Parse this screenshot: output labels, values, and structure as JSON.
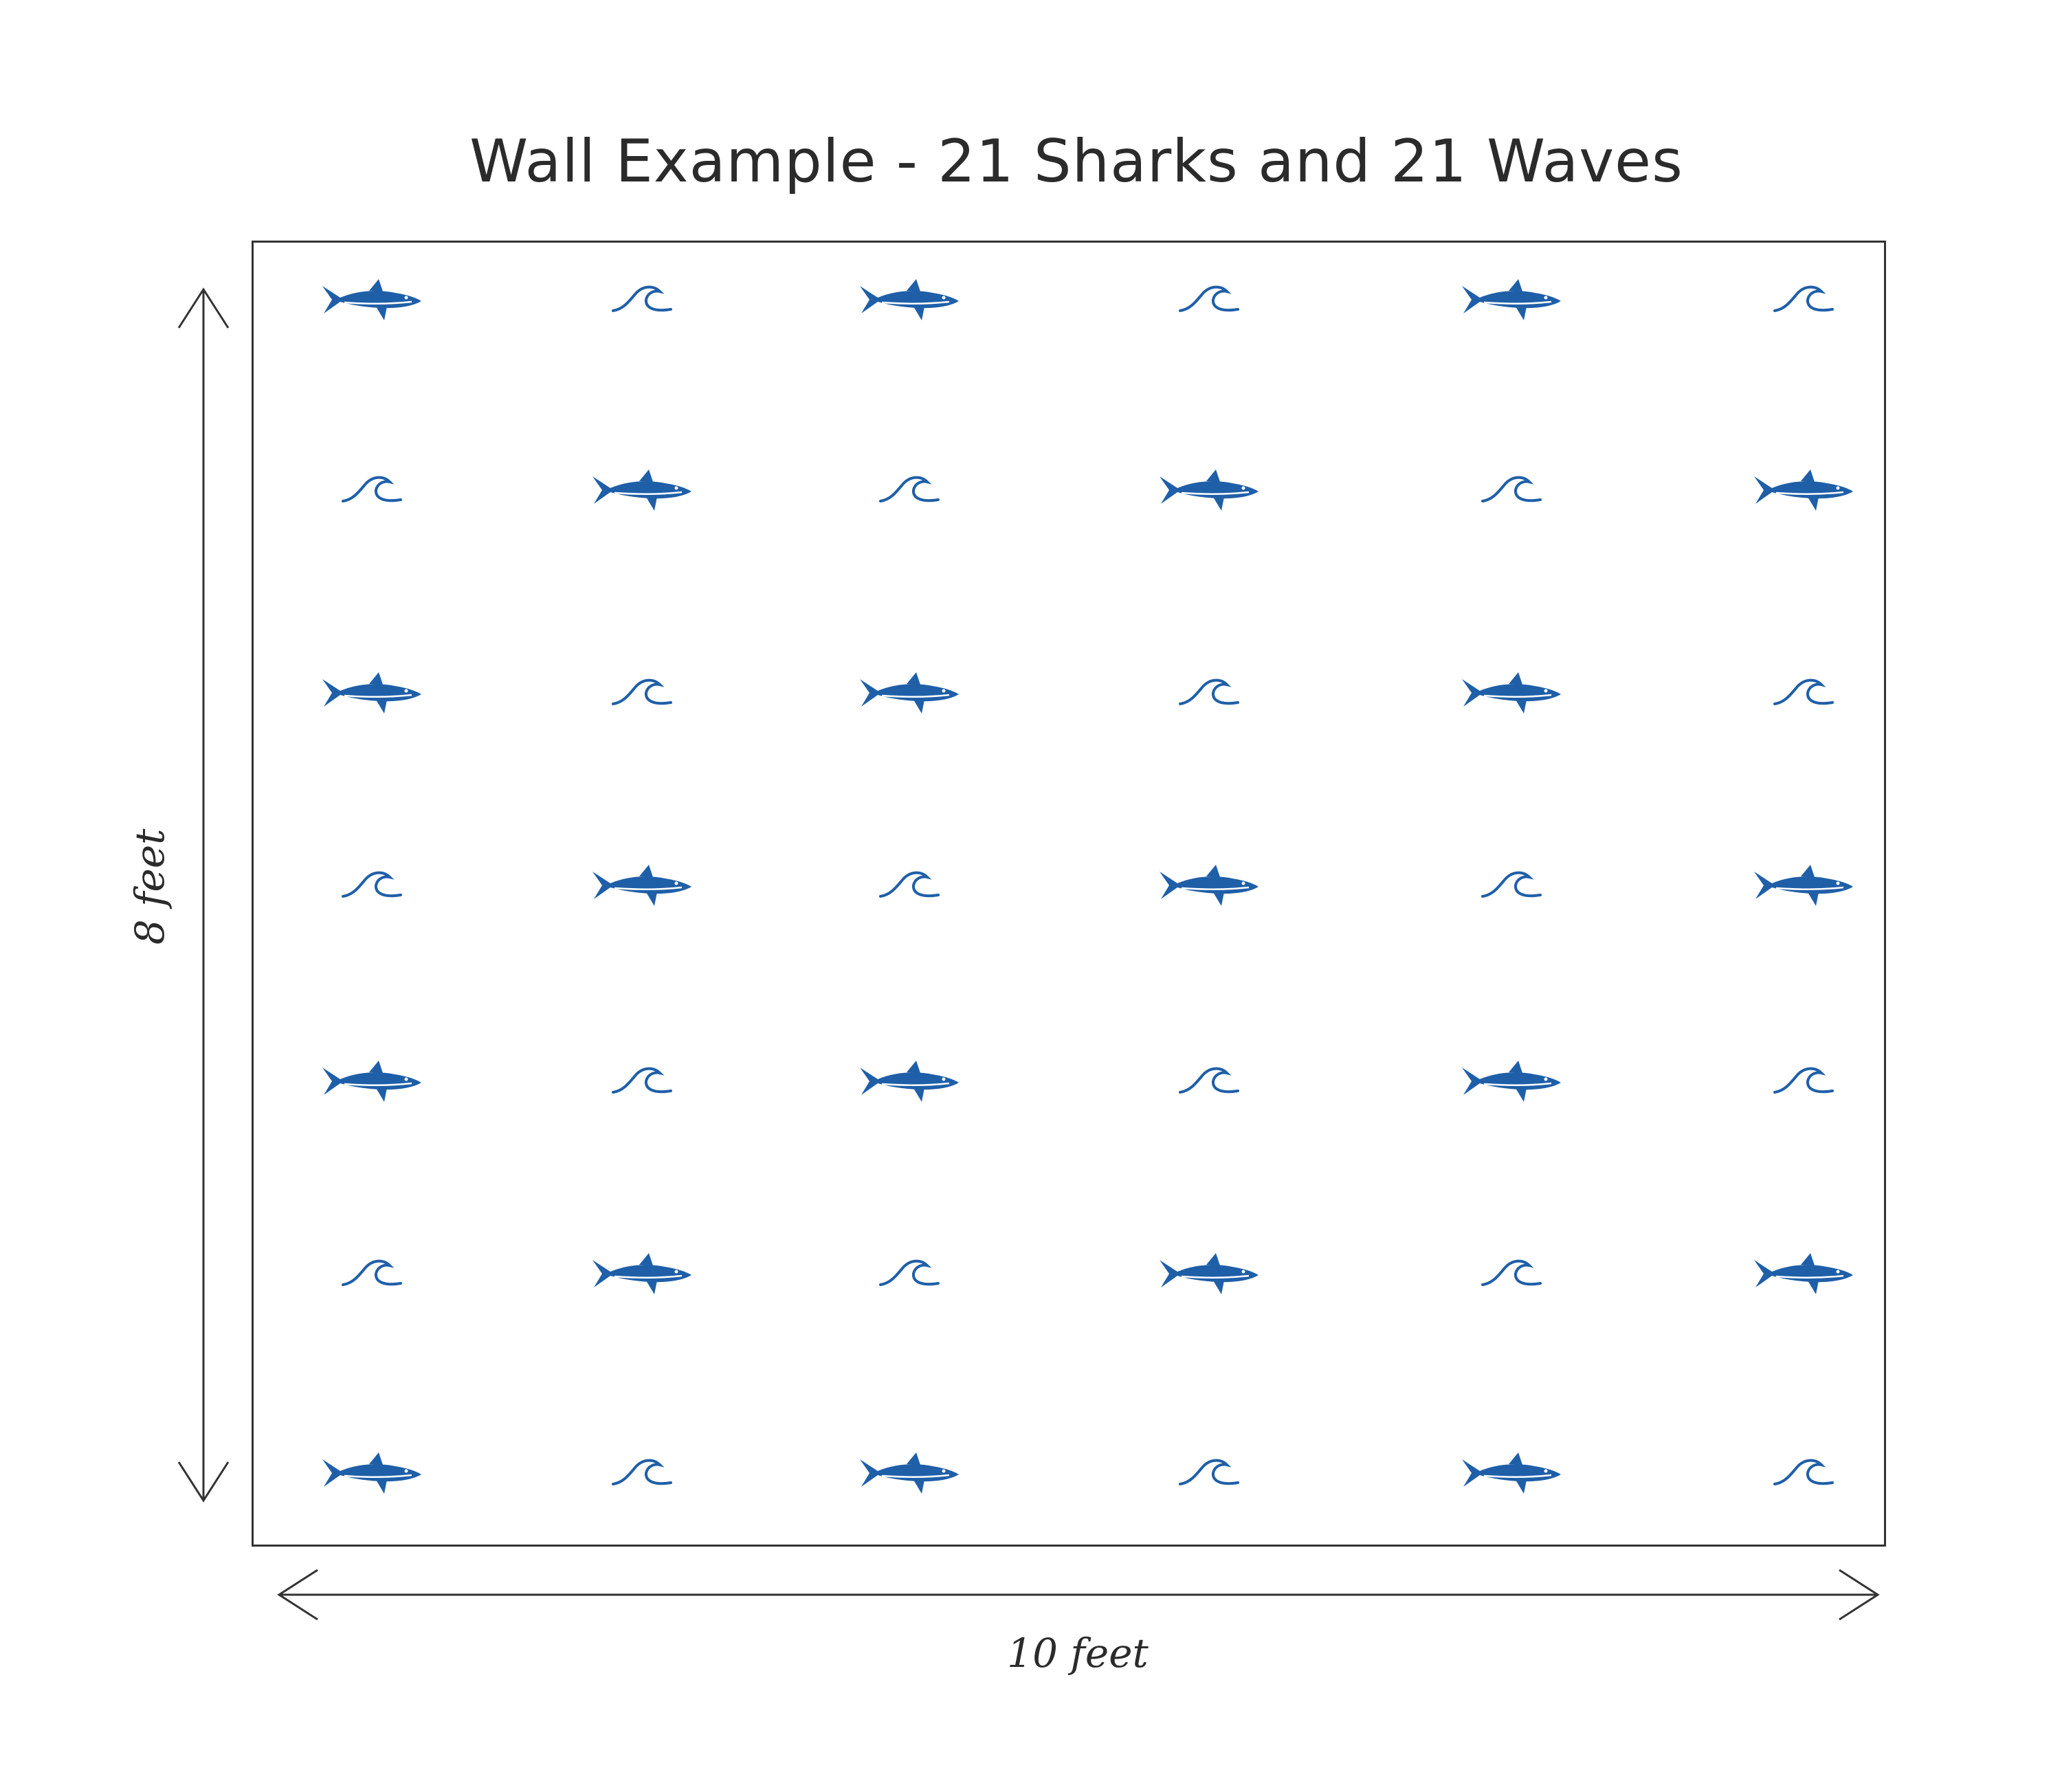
{
  "title": "Wall Example - 21 Sharks and 21 Waves",
  "dimensions": {
    "height_label": "8 feet",
    "width_label": "10 feet"
  },
  "colors": {
    "motif": "#1f5fa8",
    "line": "#333333",
    "text": "#2b2b2b"
  },
  "pattern": {
    "rows": 7,
    "columns": 6,
    "motifs": [
      "shark",
      "wave"
    ],
    "counts": {
      "shark": 21,
      "wave": 21
    },
    "layout": "alternating checkerboard",
    "grid": [
      [
        "shark",
        "wave",
        "shark",
        "wave",
        "shark",
        "wave"
      ],
      [
        "wave",
        "shark",
        "wave",
        "shark",
        "wave",
        "shark"
      ],
      [
        "shark",
        "wave",
        "shark",
        "wave",
        "shark",
        "wave"
      ],
      [
        "wave",
        "shark",
        "wave",
        "shark",
        "wave",
        "shark"
      ],
      [
        "shark",
        "wave",
        "shark",
        "wave",
        "shark",
        "wave"
      ],
      [
        "wave",
        "shark",
        "wave",
        "shark",
        "wave",
        "shark"
      ],
      [
        "shark",
        "wave",
        "shark",
        "wave",
        "shark",
        "wave"
      ]
    ]
  }
}
